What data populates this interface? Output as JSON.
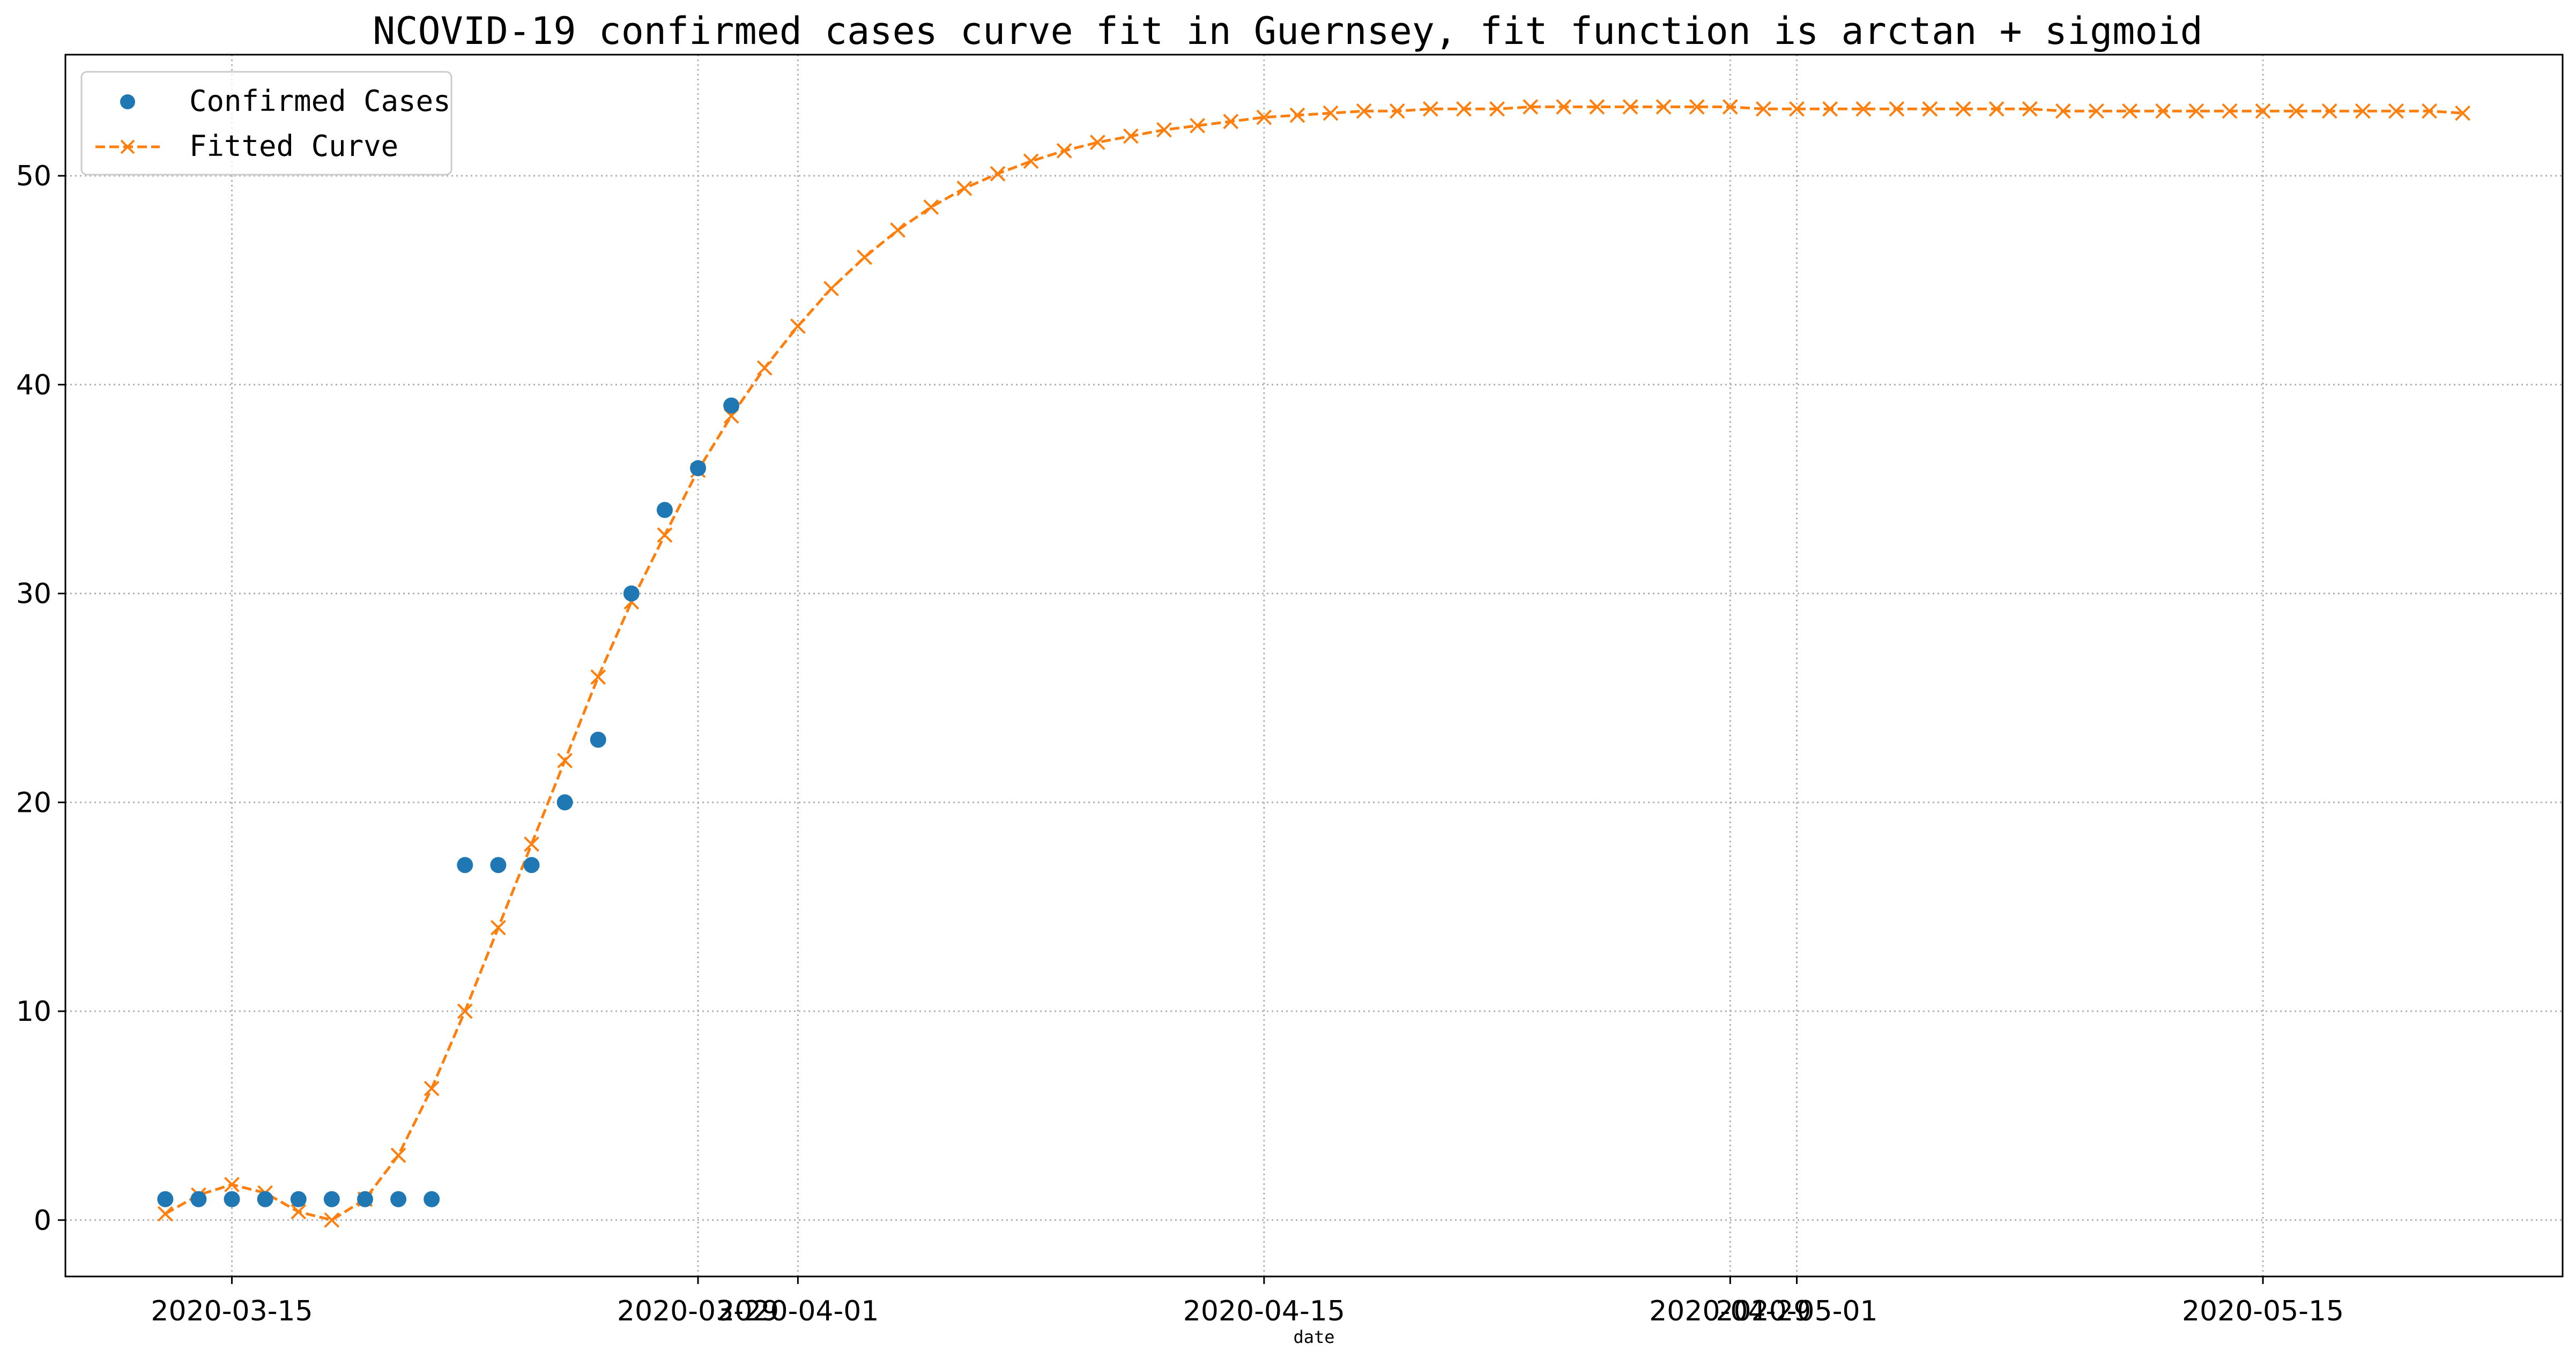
{
  "chart_data": {
    "type": "scatter",
    "title": "NCOVID-19 confirmed cases curve fit in Guernsey, fit function is arctan + sigmoid",
    "xlabel": "date",
    "ylabel": "",
    "x_start": "2020-03-13",
    "xlim": [
      "2020-03-10",
      "2020-05-24"
    ],
    "ylim": [
      -2.7,
      55.8
    ],
    "grid": true,
    "legend_position": "upper-left",
    "x_ticks": [
      {
        "date": "2020-03-15",
        "label": "2020-03-15"
      },
      {
        "date": "2020-03-29",
        "label": "2020-03-29"
      },
      {
        "date": "2020-04-01",
        "label": "2020-04-01"
      },
      {
        "date": "2020-04-15",
        "label": "2020-04-15"
      },
      {
        "date": "2020-04-29",
        "label": "2020-04-29"
      },
      {
        "date": "2020-05-01",
        "label": "2020-05-01"
      },
      {
        "date": "2020-05-15",
        "label": "2020-05-15"
      }
    ],
    "y_ticks": [
      0,
      10,
      20,
      30,
      40,
      50
    ],
    "series": [
      {
        "name": "Confirmed Cases",
        "style": "markers",
        "color": "#1f77b4",
        "x": [
          "2020-03-13",
          "2020-03-14",
          "2020-03-15",
          "2020-03-16",
          "2020-03-17",
          "2020-03-18",
          "2020-03-19",
          "2020-03-20",
          "2020-03-21",
          "2020-03-22",
          "2020-03-23",
          "2020-03-24",
          "2020-03-25",
          "2020-03-26",
          "2020-03-27",
          "2020-03-28",
          "2020-03-29",
          "2020-03-30"
        ],
        "values": [
          1,
          1,
          1,
          1,
          1,
          1,
          1,
          1,
          1,
          17,
          17,
          17,
          20,
          23,
          30,
          34,
          36,
          39
        ]
      },
      {
        "name": "Fitted Curve",
        "style": "dashed-line-x-markers",
        "color": "#ff7f0e",
        "x_start": "2020-03-13",
        "values": [
          0.3,
          1.2,
          1.7,
          1.3,
          0.4,
          0.0,
          1.0,
          3.1,
          6.3,
          10.0,
          14.0,
          18.0,
          22.0,
          26.0,
          29.6,
          32.8,
          35.9,
          38.5,
          40.8,
          42.8,
          44.6,
          46.1,
          47.4,
          48.5,
          49.4,
          50.1,
          50.7,
          51.2,
          51.6,
          51.9,
          52.2,
          52.4,
          52.6,
          52.8,
          52.9,
          53.0,
          53.1,
          53.1,
          53.2,
          53.2,
          53.2,
          53.3,
          53.3,
          53.3,
          53.3,
          53.3,
          53.3,
          53.3,
          53.2,
          53.2,
          53.2,
          53.2,
          53.2,
          53.2,
          53.2,
          53.2,
          53.2,
          53.1,
          53.1,
          53.1,
          53.1,
          53.1,
          53.1,
          53.1,
          53.1,
          53.1,
          53.1,
          53.1,
          53.1,
          53.0
        ]
      }
    ]
  }
}
